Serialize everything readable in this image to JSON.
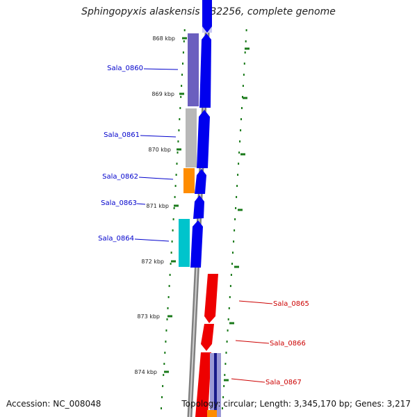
{
  "title": "Sphingopyxis alaskensis RB2256, complete genome",
  "accession": "Accession: NC_008048",
  "topology": "Topology: circular; Length: 3,345,170 bp; Genes: 3,217",
  "colors": {
    "forward_label": "#0000cc",
    "reverse_label": "#cc0000",
    "forward_cds": "#0000ee",
    "reverse_cds": "#ee0000",
    "backbone": "#808080",
    "tick": "#1a7a1a",
    "purple": "#6b5fbf",
    "gray": "#b8b8b8",
    "orange": "#ff8c00",
    "cyan": "#00c4cc"
  },
  "scale_ticks": [
    "868 kbp",
    "869 kbp",
    "870 kbp",
    "871 kbp",
    "872 kbp",
    "873 kbp",
    "874 kbp"
  ],
  "forward_genes": [
    "Sala_0860",
    "Sala_0861",
    "Sala_0862",
    "Sala_0863",
    "Sala_0864"
  ],
  "reverse_genes": [
    "Sala_0865",
    "Sala_0866",
    "Sala_0867"
  ]
}
